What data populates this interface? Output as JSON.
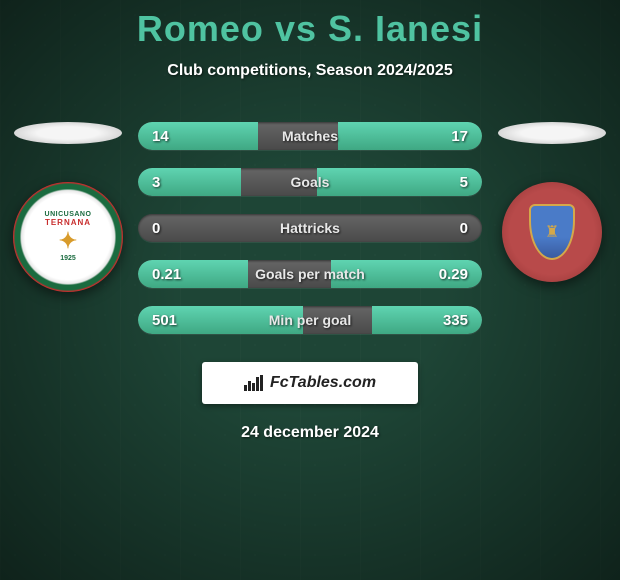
{
  "title": {
    "player1": "Romeo",
    "vs": "vs",
    "player2": "S. Ianesi",
    "color": "#4fc3a1"
  },
  "subtitle": "Club competitions, Season 2024/2025",
  "date": "24 december 2024",
  "brand": "FcTables.com",
  "background_color": "#1e4536",
  "bar_base_color": "#555555",
  "bar_fill_color": "#4fc3a1",
  "text_color": "#ffffff",
  "team_left": {
    "top_text": "UNICUSANO",
    "mid_text": "TERNANA",
    "year": "1925"
  },
  "stats": [
    {
      "label": "Matches",
      "left_val": "14",
      "right_val": "17",
      "left_pct": 35,
      "right_pct": 42
    },
    {
      "label": "Goals",
      "left_val": "3",
      "right_val": "5",
      "left_pct": 30,
      "right_pct": 48
    },
    {
      "label": "Hattricks",
      "left_val": "0",
      "right_val": "0",
      "left_pct": 0,
      "right_pct": 0
    },
    {
      "label": "Goals per match",
      "left_val": "0.21",
      "right_val": "0.29",
      "left_pct": 32,
      "right_pct": 44
    },
    {
      "label": "Min per goal",
      "left_val": "501",
      "right_val": "335",
      "left_pct": 48,
      "right_pct": 32
    }
  ]
}
